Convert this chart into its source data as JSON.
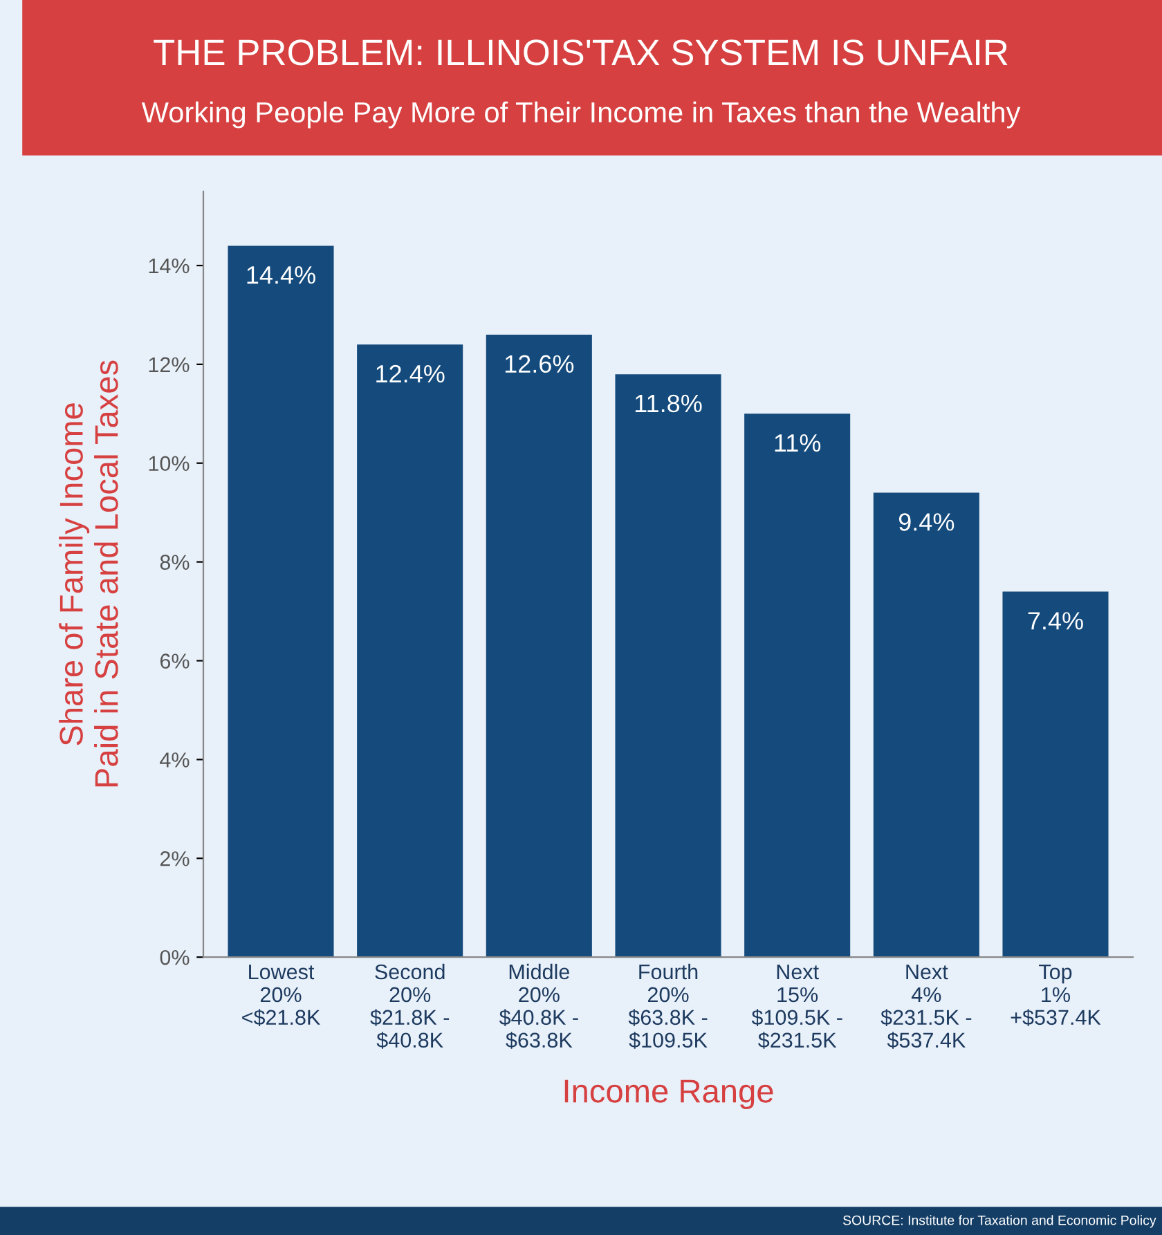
{
  "chart_data": {
    "type": "bar",
    "title": "THE PROBLEM: ILLINOIS'TAX SYSTEM IS UNFAIR",
    "subtitle": "Working People Pay More of Their Income in Taxes than the Wealthy",
    "xlabel": "Income Range",
    "ylabel": "Share of Family Income\nPaid in State and Local Taxes",
    "categories": [
      "Lowest\n20%\n<$21.8K",
      "Second\n20%\n$21.8K -\n$40.8K",
      "Middle\n20%\n$40.8K -\n$63.8K",
      "Fourth\n20%\n$63.8K -\n$109.5K",
      "Next\n15%\n$109.5K -\n$231.5K",
      "Next\n4%\n$231.5K -\n$537.4K",
      "Top\n1%\n+$537.4K"
    ],
    "values": [
      14.4,
      12.4,
      12.6,
      11.8,
      11,
      9.4,
      7.4
    ],
    "value_labels": [
      "14.4%",
      "12.4%",
      "12.6%",
      "11.8%",
      "11%",
      "9.4%",
      "7.4%"
    ],
    "color": "#144a7c",
    "ylim": [
      0,
      15.5
    ],
    "yticks": [
      {
        "value": 0,
        "label": "0%"
      },
      {
        "value": 2,
        "label": "2%"
      },
      {
        "value": 4,
        "label": "4%"
      },
      {
        "value": 6,
        "label": "6%"
      },
      {
        "value": 8,
        "label": "8%"
      },
      {
        "value": 10,
        "label": "10%"
      },
      {
        "value": 12,
        "label": "12%"
      },
      {
        "value": 14,
        "label": "14%"
      }
    ],
    "grid": false,
    "legend": false,
    "annotations": [
      "SOURCE: Institute for Taxation and Economic Policy"
    ]
  }
}
